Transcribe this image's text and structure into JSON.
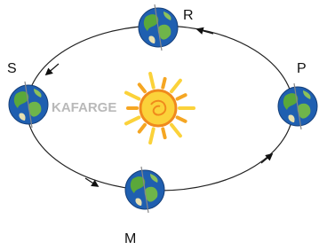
{
  "nodes": [
    {
      "label": "R"
    },
    {
      "label": "S"
    },
    {
      "label": "P"
    },
    {
      "label": "M"
    }
  ],
  "watermark": "KAFARGE"
}
